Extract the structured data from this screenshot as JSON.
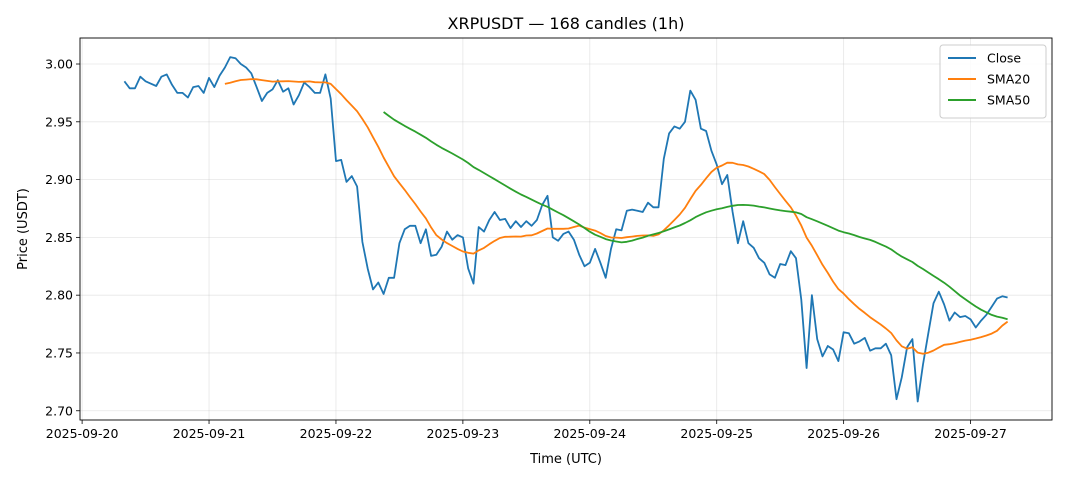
{
  "chart_data": {
    "type": "line",
    "title": "XRPUSDT — 168 candles (1h)",
    "xlabel": "Time (UTC)",
    "ylabel": "Price (USDT)",
    "start_time": "2025-09-20 08:00",
    "interval_hours": 1,
    "x_ticks": [
      "2025-09-20",
      "2025-09-21",
      "2025-09-22",
      "2025-09-23",
      "2025-09-24",
      "2025-09-25",
      "2025-09-26",
      "2025-09-27"
    ],
    "y_ticks": [
      "2.70",
      "2.75",
      "2.80",
      "2.85",
      "2.90",
      "2.95",
      "3.00"
    ],
    "ylim": [
      2.692,
      3.0225
    ],
    "xlim_hours_from_first_tick": [
      -0.4,
      183.4
    ],
    "grid": true,
    "legend_position": "top-right",
    "series": [
      {
        "name": "Close",
        "color": "#1f77b4",
        "values": [
          2.985,
          2.979,
          2.979,
          2.989,
          2.985,
          2.983,
          2.981,
          2.989,
          2.991,
          2.982,
          2.975,
          2.975,
          2.971,
          2.98,
          2.981,
          2.975,
          2.988,
          2.98,
          2.99,
          2.997,
          3.006,
          3.005,
          3.0,
          2.997,
          2.992,
          2.98,
          2.968,
          2.975,
          2.978,
          2.986,
          2.976,
          2.979,
          2.965,
          2.973,
          2.984,
          2.98,
          2.975,
          2.975,
          2.991,
          2.97,
          2.916,
          2.917,
          2.898,
          2.903,
          2.894,
          2.846,
          2.823,
          2.805,
          2.811,
          2.801,
          2.815,
          2.815,
          2.845,
          2.857,
          2.86,
          2.86,
          2.845,
          2.857,
          2.834,
          2.835,
          2.842,
          2.855,
          2.848,
          2.852,
          2.85,
          2.823,
          2.81,
          2.859,
          2.855,
          2.865,
          2.872,
          2.865,
          2.866,
          2.858,
          2.864,
          2.859,
          2.864,
          2.86,
          2.865,
          2.878,
          2.886,
          2.85,
          2.847,
          2.853,
          2.855,
          2.848,
          2.835,
          2.825,
          2.828,
          2.84,
          2.828,
          2.815,
          2.84,
          2.857,
          2.856,
          2.873,
          2.874,
          2.873,
          2.872,
          2.88,
          2.876,
          2.876,
          2.918,
          2.94,
          2.946,
          2.944,
          2.95,
          2.977,
          2.969,
          2.944,
          2.942,
          2.925,
          2.913,
          2.896,
          2.904,
          2.872,
          2.845,
          2.864,
          2.845,
          2.841,
          2.832,
          2.828,
          2.818,
          2.815,
          2.827,
          2.826,
          2.838,
          2.832,
          2.796,
          2.737,
          2.8,
          2.762,
          2.747,
          2.756,
          2.753,
          2.743,
          2.768,
          2.767,
          2.758,
          2.76,
          2.763,
          2.752,
          2.754,
          2.754,
          2.758,
          2.748,
          2.71,
          2.729,
          2.755,
          2.762,
          2.708,
          2.74,
          2.767,
          2.793,
          2.803,
          2.792,
          2.778,
          2.785,
          2.781,
          2.782,
          2.779,
          2.772,
          2.778,
          2.783,
          2.79,
          2.797,
          2.799,
          2.798
        ]
      },
      {
        "name": "SMA20",
        "color": "#ff7f0e",
        "window": 20
      },
      {
        "name": "SMA50",
        "color": "#2ca02c",
        "window": 50
      }
    ]
  }
}
